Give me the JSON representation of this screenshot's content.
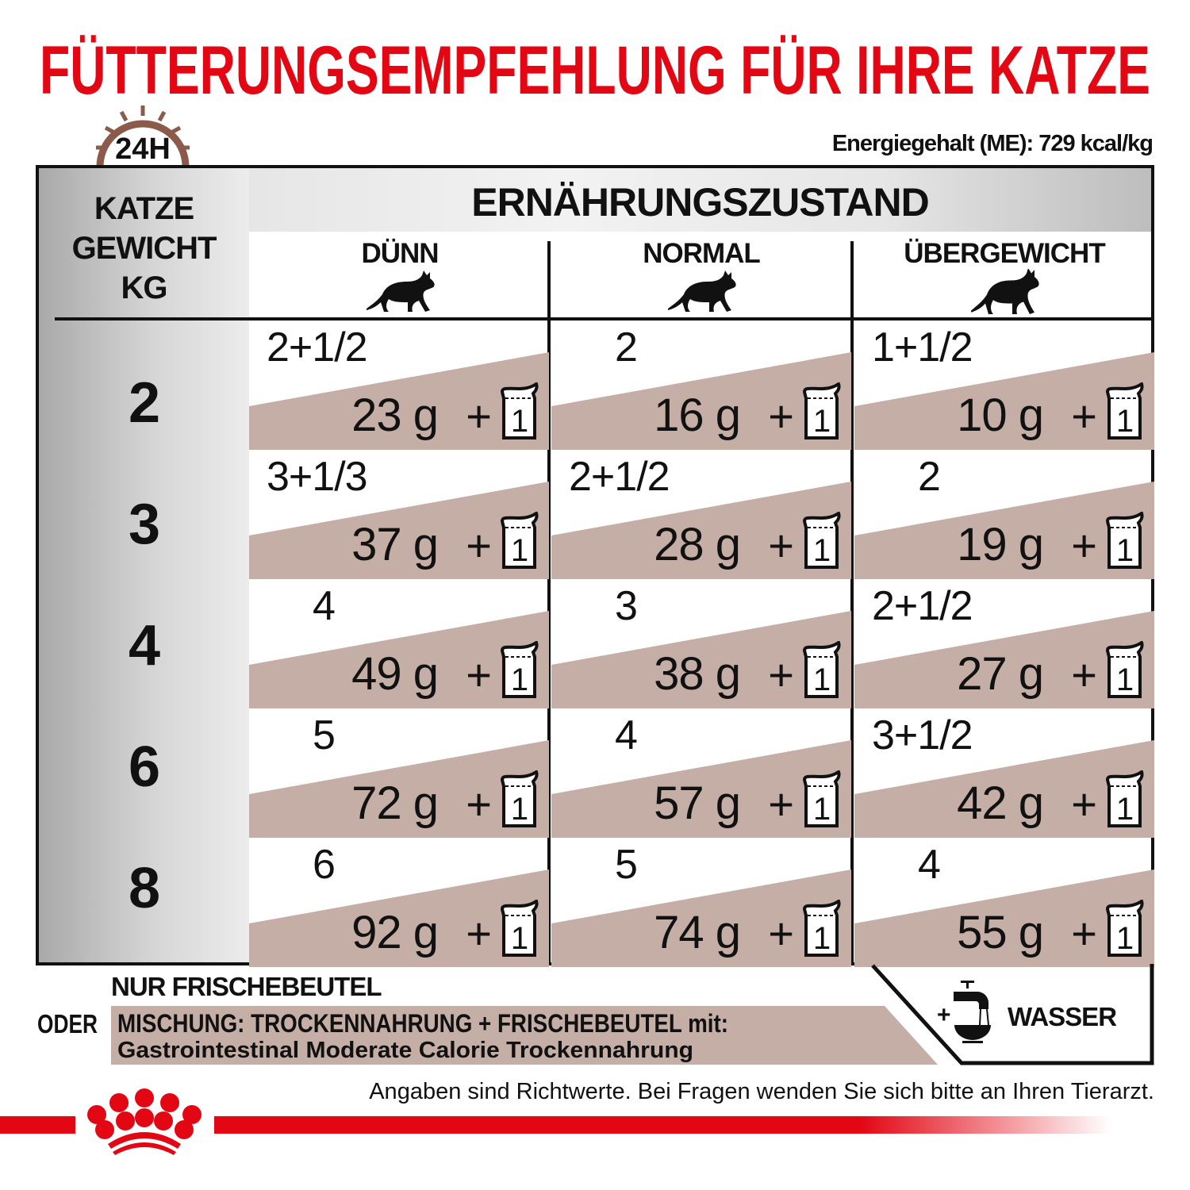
{
  "title": "FÜTTERUNGSEMPFEHLUNG FÜR IHRE KATZE",
  "clock_label": "24H",
  "energy": "Energiegehalt (ME): 729 kcal/kg",
  "table": {
    "left_header": [
      "KATZE",
      "GEWICHT",
      "KG"
    ],
    "group_header": "ERNÄHRUNGSZUSTAND",
    "columns": [
      "DÜNN",
      "NORMAL",
      "ÜBERGEWICHT"
    ],
    "pouch_count_label": "1",
    "rows": [
      {
        "weight": "2",
        "cells": [
          {
            "count": "2+1/2",
            "grams": "23 g"
          },
          {
            "count": "2",
            "grams": "16 g"
          },
          {
            "count": "1+1/2",
            "grams": "10 g"
          }
        ]
      },
      {
        "weight": "3",
        "cells": [
          {
            "count": "3+1/3",
            "grams": "37 g"
          },
          {
            "count": "2+1/2",
            "grams": "28 g"
          },
          {
            "count": "2",
            "grams": "19 g"
          }
        ]
      },
      {
        "weight": "4",
        "cells": [
          {
            "count": "4",
            "grams": "49 g"
          },
          {
            "count": "3",
            "grams": "38 g"
          },
          {
            "count": "2+1/2",
            "grams": "27 g"
          }
        ]
      },
      {
        "weight": "6",
        "cells": [
          {
            "count": "5",
            "grams": "72 g"
          },
          {
            "count": "4",
            "grams": "57 g"
          },
          {
            "count": "3+1/2",
            "grams": "42 g"
          }
        ]
      },
      {
        "weight": "8",
        "cells": [
          {
            "count": "6",
            "grams": "92 g"
          },
          {
            "count": "5",
            "grams": "74 g"
          },
          {
            "count": "4",
            "grams": "55 g"
          }
        ]
      }
    ]
  },
  "bottom": {
    "only_pouch": "NUR FRISCHEBEUTEL",
    "or": "ODER",
    "mix_line1": "MISCHUNG: TROCKENNAHRUNG + FRISCHEBEUTEL mit:",
    "mix_line2": "Gastrointestinal Moderate Calorie Trockennahrung",
    "water_plus": "+",
    "water": "WASSER"
  },
  "footnote": "Angaben sind Richtwerte. Bei Fragen wenden Sie sich bitte an Ihren Tierarzt.",
  "colors": {
    "brand_red": "#e30613",
    "band": "#c4aea6",
    "clock": "#8b5a4a"
  }
}
